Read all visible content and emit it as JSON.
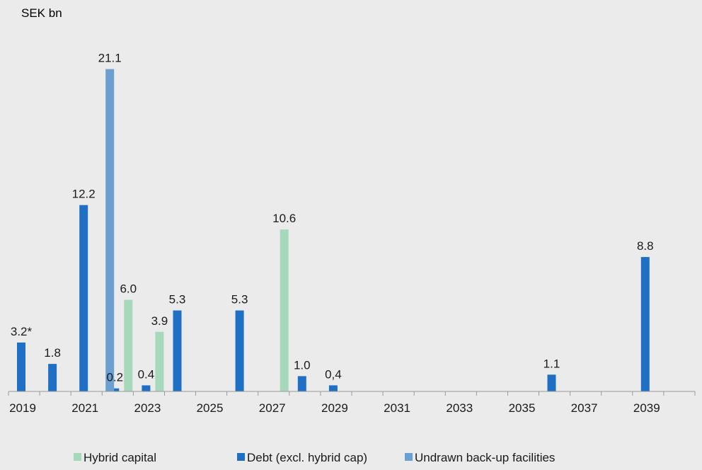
{
  "chart_data": {
    "type": "bar",
    "title": "",
    "unit_label": "SEK bn",
    "xlabel": "",
    "ylabel": "",
    "grid": false,
    "legend_position": "bottom",
    "ylim": [
      0,
      24
    ],
    "colors": {
      "background": "#ebebeb",
      "axis": "#9a9a9a",
      "text": "#1a1a1a"
    },
    "categories": [
      "2019",
      "2020",
      "2021",
      "2022",
      "2023",
      "2024",
      "2025",
      "2026",
      "2027",
      "2028",
      "2029",
      "2030",
      "2031",
      "2032",
      "2033",
      "2034",
      "2035",
      "2036",
      "2037",
      "2038",
      "2039",
      "2040"
    ],
    "tick_labels": [
      "2019",
      "2021",
      "2023",
      "2025",
      "2027",
      "2029",
      "2031",
      "2033",
      "2035",
      "2037",
      "2039"
    ],
    "series": [
      {
        "name": "Debt (excl. hybrid cap)",
        "color": "#1f6fc5",
        "values": [
          3.2,
          1.8,
          12.2,
          0.2,
          0.4,
          5.3,
          0,
          5.3,
          0,
          1.0,
          0.4,
          0,
          0,
          0,
          0,
          0,
          0,
          1.1,
          0,
          0,
          8.8,
          0
        ],
        "labels": [
          "3.2*",
          "1.8",
          "12.2",
          "0.2",
          "0.4",
          "5.3",
          "",
          "5.3",
          "",
          "1.0",
          "0,4",
          "",
          "",
          "",
          "",
          "",
          "",
          "1.1",
          "",
          "",
          "8.8",
          ""
        ]
      },
      {
        "name": "Hybrid capital",
        "color": "#a6d8bb",
        "values": [
          0,
          0,
          0,
          6.0,
          3.9,
          0,
          0,
          0,
          10.6,
          0,
          0,
          0,
          0,
          0,
          0,
          0,
          0,
          0,
          0,
          0,
          0,
          0
        ],
        "labels": [
          "",
          "",
          "",
          "6.0",
          "3.9",
          "",
          "",
          "",
          "10.6",
          "",
          "",
          "",
          "",
          "",
          "",
          "",
          "",
          "",
          "",
          "",
          "",
          ""
        ]
      },
      {
        "name": "Undrawn back-up facilities",
        "color": "#6b9fd1",
        "values": [
          0,
          0,
          21.1,
          0,
          0,
          0,
          0,
          0,
          0,
          0,
          0,
          0,
          0,
          0,
          0,
          0,
          0,
          0,
          0,
          0,
          0,
          0
        ],
        "labels": [
          "",
          "",
          "21.1",
          "",
          "",
          "",
          "",
          "",
          "",
          "",
          "",
          "",
          "",
          "",
          "",
          "",
          "",
          "",
          "",
          "",
          "",
          ""
        ]
      }
    ],
    "legend_order": [
      "Hybrid capital",
      "Debt (excl. hybrid cap)",
      "Undrawn back-up facilities"
    ]
  }
}
